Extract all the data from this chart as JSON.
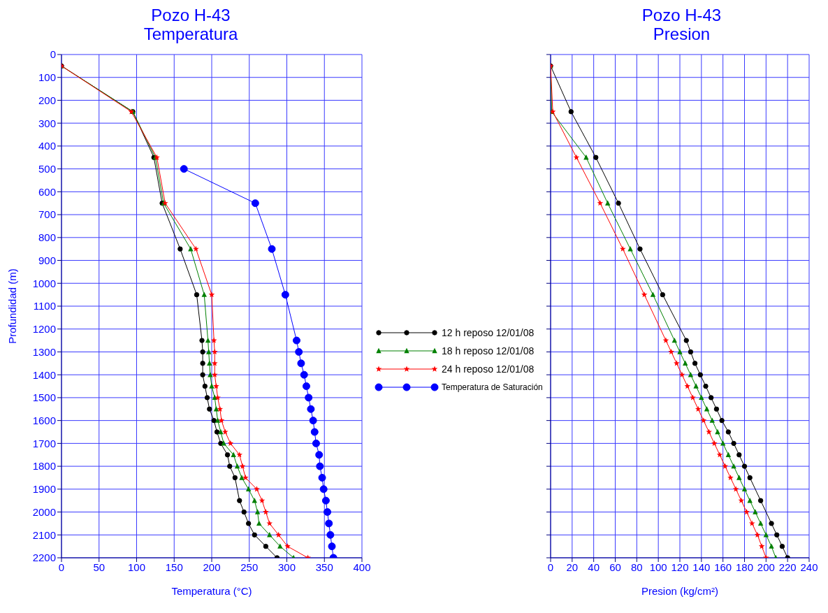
{
  "chart_data": [
    {
      "type": "line",
      "title": "Pozo H-43\nTemperatura",
      "xlabel": "Temperatura  (°C)",
      "ylabel": "Profundidad (m)",
      "xlim": [
        0,
        400
      ],
      "xticks": [
        0,
        50,
        100,
        150,
        200,
        250,
        300,
        350,
        400
      ],
      "ylim": [
        2200,
        0
      ],
      "yticks": [
        0,
        100,
        200,
        300,
        400,
        500,
        600,
        700,
        800,
        900,
        1000,
        1100,
        1200,
        1300,
        1400,
        1500,
        1600,
        1700,
        1800,
        1900,
        2000,
        2100,
        2200
      ],
      "grid": true,
      "legend": "right",
      "series": [
        {
          "name": "12 h reposo 12/01/08",
          "color": "#000000",
          "marker": "circle",
          "x": [
            0,
            95,
            123,
            134,
            158,
            180,
            187,
            188,
            188,
            188,
            191,
            194,
            197,
            203,
            207,
            212,
            221,
            224,
            231,
            237,
            243,
            249,
            257,
            272,
            287
          ],
          "values": [
            50,
            250,
            450,
            650,
            850,
            1050,
            1250,
            1300,
            1350,
            1400,
            1450,
            1500,
            1550,
            1600,
            1650,
            1700,
            1750,
            1800,
            1850,
            1950,
            2000,
            2050,
            2100,
            2150,
            2200
          ]
        },
        {
          "name": "18 h reposo 12/01/08",
          "color": "#008000",
          "marker": "triangle",
          "x": [
            0,
            95,
            125,
            136,
            172,
            190,
            195,
            196,
            197,
            198,
            200,
            204,
            206,
            208,
            212,
            216,
            229,
            234,
            240,
            249,
            257,
            261,
            263,
            277,
            291,
            309
          ],
          "values": [
            50,
            250,
            450,
            650,
            850,
            1050,
            1250,
            1300,
            1350,
            1400,
            1450,
            1500,
            1550,
            1600,
            1650,
            1700,
            1750,
            1800,
            1850,
            1900,
            1950,
            2000,
            2050,
            2100,
            2150,
            2200
          ]
        },
        {
          "name": "24 h reposo 12/01/08",
          "color": "#ff0000",
          "marker": "star",
          "x": [
            0,
            93,
            127,
            138,
            179,
            200,
            203,
            204,
            204,
            204,
            206,
            208,
            211,
            213,
            218,
            225,
            237,
            241,
            245,
            260,
            267,
            272,
            277,
            289,
            301,
            328
          ],
          "values": [
            50,
            250,
            450,
            650,
            850,
            1050,
            1250,
            1300,
            1350,
            1400,
            1450,
            1500,
            1550,
            1600,
            1650,
            1700,
            1750,
            1800,
            1850,
            1900,
            1950,
            2000,
            2050,
            2100,
            2150,
            2200
          ]
        },
        {
          "name": "Temperatura de Saturación",
          "color": "#0000ff",
          "marker": "circle",
          "x": [
            163,
            258,
            280,
            298,
            313,
            316,
            319,
            323,
            326,
            329,
            332,
            335,
            337,
            339,
            343,
            344,
            347,
            349,
            352,
            354,
            356,
            358,
            360,
            362
          ],
          "values": [
            500,
            650,
            850,
            1050,
            1250,
            1300,
            1350,
            1400,
            1450,
            1500,
            1550,
            1600,
            1650,
            1700,
            1750,
            1800,
            1850,
            1900,
            1950,
            2000,
            2050,
            2100,
            2150,
            2200
          ]
        }
      ]
    },
    {
      "type": "line",
      "title": "Pozo H-43\nPresion",
      "xlabel": "Presion (kg/cm²)",
      "xlim": [
        0,
        240
      ],
      "xticks": [
        0,
        20,
        40,
        60,
        80,
        100,
        120,
        140,
        160,
        180,
        200,
        220,
        240
      ],
      "ylim": [
        2200,
        0
      ],
      "yticks": [
        0,
        100,
        200,
        300,
        400,
        500,
        600,
        700,
        800,
        900,
        1000,
        1100,
        1200,
        1300,
        1400,
        1500,
        1600,
        1700,
        1800,
        1900,
        2000,
        2100,
        2200
      ],
      "grid": true,
      "tick_labels": "x",
      "series": [
        {
          "color": "#000000",
          "marker": "circle",
          "x": [
            0,
            19,
            42,
            63,
            83,
            104,
            126,
            130,
            134,
            139,
            144,
            149,
            154,
            159,
            165,
            170,
            175,
            180,
            185,
            195,
            205,
            210,
            215,
            220
          ],
          "values": [
            50,
            250,
            450,
            650,
            850,
            1050,
            1250,
            1300,
            1350,
            1400,
            1450,
            1500,
            1550,
            1600,
            1650,
            1700,
            1750,
            1800,
            1850,
            1950,
            2050,
            2100,
            2150,
            2200
          ]
        },
        {
          "color": "#008000",
          "marker": "triangle",
          "x": [
            0,
            1,
            33,
            53,
            74,
            95,
            115,
            120,
            125,
            130,
            135,
            140,
            145,
            150,
            155,
            160,
            165,
            170,
            175,
            180,
            185,
            190,
            195,
            200,
            205,
            209
          ],
          "values": [
            50,
            250,
            450,
            650,
            850,
            1050,
            1250,
            1300,
            1350,
            1400,
            1450,
            1500,
            1550,
            1600,
            1650,
            1700,
            1750,
            1800,
            1850,
            1900,
            1950,
            2000,
            2050,
            2100,
            2150,
            2200
          ]
        },
        {
          "color": "#ff0000",
          "marker": "star",
          "x": [
            0,
            2,
            24,
            46,
            67,
            87,
            107,
            112,
            117,
            122,
            127,
            132,
            137,
            142,
            147,
            152,
            157,
            162,
            167,
            172,
            177,
            182,
            187,
            192,
            196,
            200
          ],
          "values": [
            50,
            250,
            450,
            650,
            850,
            1050,
            1250,
            1300,
            1350,
            1400,
            1450,
            1500,
            1550,
            1600,
            1650,
            1700,
            1750,
            1800,
            1850,
            1900,
            1950,
            2000,
            2050,
            2100,
            2150,
            2200
          ]
        }
      ]
    }
  ]
}
